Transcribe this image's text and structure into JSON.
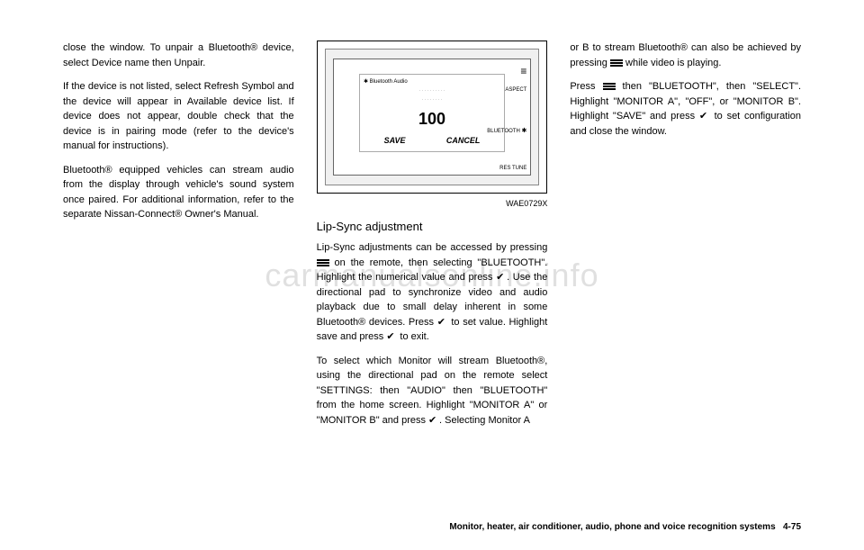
{
  "col1": {
    "p1": "close the window. To unpair a Bluetooth® device, select Device name then Unpair.",
    "p2": "If the device is not listed, select Refresh Symbol and the device will appear in Available device list. If device does not appear, double check that the device is in pairing mode (refer to the device's manual for instructions).",
    "p3": "Bluetooth® equipped vehicles can stream audio from the display through vehicle's sound system once paired. For additional information, refer to the separate Nissan-Connect® Owner's Manual."
  },
  "figure": {
    "bt_audio_label": "Bluetooth Audio",
    "number": "100",
    "save": "SAVE",
    "cancel": "CANCEL",
    "aspect": "ASPECT",
    "bluetooth": "BLUETOOTH",
    "tune": "RES TUNE",
    "label": "WAE0729X"
  },
  "col2": {
    "heading": "Lip-Sync adjustment",
    "p1a": "Lip-Sync adjustments can be accessed by pressing ",
    "p1b": " on the remote, then selecting \"BLUETOOTH\". Highlight the numerical value and press ",
    "p1c": ". Use the directional pad to synchronize video and audio playback due to small delay inherent in some Bluetooth® devices. Press ",
    "p1d": " to set value. Highlight save and press ",
    "p1e": " to exit.",
    "p2a": "To select which Monitor will stream Bluetooth®, using the directional pad on the remote select \"SETTINGS: then \"AUDIO\" then \"BLUETOOTH\" from the home screen. Highlight \"MONITOR A\" or \"MONITOR B\" and press ",
    "p2b": ". Selecting Monitor A"
  },
  "col3": {
    "p1a": "or B to stream Bluetooth® can also be achieved by pressing ",
    "p1b": " while video is playing.",
    "p2a": "Press ",
    "p2b": " then \"BLUETOOTH\", then \"SELECT\". Highlight \"MONITOR A\", \"OFF\", or \"MONITOR B\". Highlight \"SAVE\" and press ",
    "p2c": " to set configuration and close the window."
  },
  "footer": {
    "section": "Monitor, heater, air conditioner, audio, phone and voice recognition systems",
    "page": "4-75"
  },
  "watermark": "carmanualsonline.info",
  "colors": {
    "text": "#000000",
    "background": "#ffffff",
    "watermark": "rgba(0,0,0,0.12)"
  }
}
